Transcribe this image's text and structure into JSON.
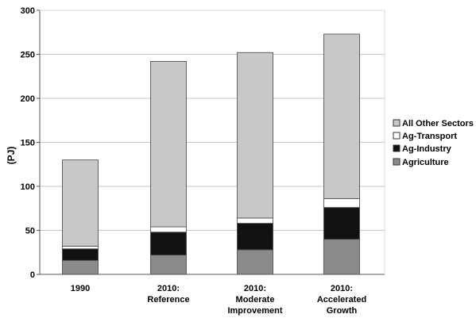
{
  "chart_data": {
    "type": "bar",
    "stacked": true,
    "title": "",
    "xlabel": "",
    "ylabel": "(PJ)",
    "ylim": [
      0,
      300
    ],
    "yticks": [
      0,
      50,
      100,
      150,
      200,
      250,
      300
    ],
    "grid": true,
    "legend_position": "right",
    "categories": [
      [
        "1990"
      ],
      [
        "2010:",
        "Reference"
      ],
      [
        "2010:",
        "Moderate",
        "Improvement"
      ],
      [
        "2010:",
        "Accelerated",
        "Growth"
      ]
    ],
    "series": [
      {
        "name": "Agriculture",
        "values": [
          16,
          22,
          28,
          40
        ],
        "color": "#8a8a8a"
      },
      {
        "name": "Ag-Industry",
        "values": [
          13,
          26,
          30,
          36
        ],
        "color": "#111111"
      },
      {
        "name": "Ag-Transport",
        "values": [
          3,
          6,
          6,
          10
        ],
        "color": "#ffffff"
      },
      {
        "name": "All Other Sectors",
        "values": [
          98,
          188,
          188,
          187
        ],
        "color": "#c8c8c8"
      }
    ],
    "legend_order": [
      "All Other Sectors",
      "Ag-Transport",
      "Ag-Industry",
      "Agriculture"
    ]
  }
}
